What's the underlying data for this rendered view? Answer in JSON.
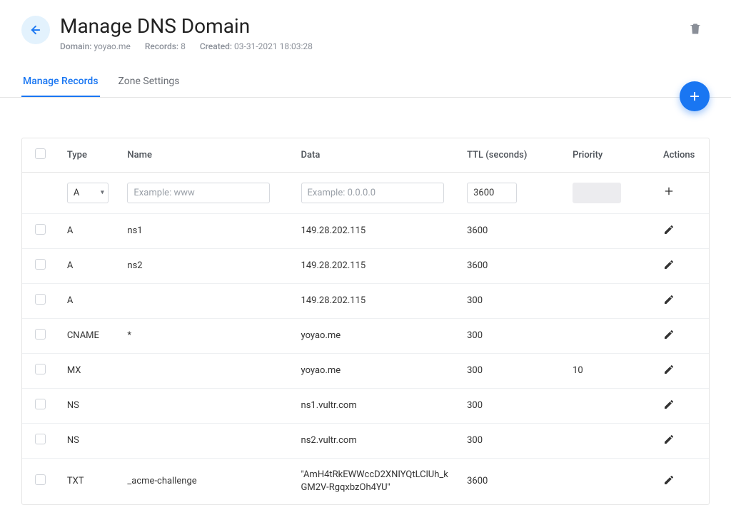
{
  "header": {
    "title": "Manage DNS Domain",
    "meta": {
      "domain_label": "Domain:",
      "domain_value": "yoyao.me",
      "records_label": "Records:",
      "records_value": "8",
      "created_label": "Created:",
      "created_value": "03-31-2021 18:03:28"
    }
  },
  "tabs": {
    "manage": "Manage Records",
    "zone": "Zone Settings"
  },
  "table": {
    "columns": {
      "type": "Type",
      "name": "Name",
      "data": "Data",
      "ttl": "TTL (seconds)",
      "priority": "Priority",
      "actions": "Actions"
    },
    "new_row": {
      "type_value": "A",
      "name_placeholder": "Example: www",
      "data_placeholder": "Example: 0.0.0.0",
      "ttl_value": "3600"
    },
    "rows": [
      {
        "type": "A",
        "name": "ns1",
        "data": "149.28.202.115",
        "ttl": "3600",
        "priority": ""
      },
      {
        "type": "A",
        "name": "ns2",
        "data": "149.28.202.115",
        "ttl": "3600",
        "priority": ""
      },
      {
        "type": "A",
        "name": "",
        "data": "149.28.202.115",
        "ttl": "300",
        "priority": ""
      },
      {
        "type": "CNAME",
        "name": "*",
        "data": "yoyao.me",
        "ttl": "300",
        "priority": ""
      },
      {
        "type": "MX",
        "name": "",
        "data": "yoyao.me",
        "ttl": "300",
        "priority": "10"
      },
      {
        "type": "NS",
        "name": "",
        "data": "ns1.vultr.com",
        "ttl": "300",
        "priority": ""
      },
      {
        "type": "NS",
        "name": "",
        "data": "ns2.vultr.com",
        "ttl": "300",
        "priority": ""
      },
      {
        "type": "TXT",
        "name": "_acme-challenge",
        "data": "\"AmH4tRkEWWccD2XNIYQtLClUh_kGM2V-RgqxbzOh4YU\"",
        "ttl": "3600",
        "priority": ""
      }
    ]
  },
  "colors": {
    "accent": "#1976f2",
    "back_bg": "#e3f2fd",
    "border": "#e5e5e5",
    "muted": "#8a8f98"
  }
}
